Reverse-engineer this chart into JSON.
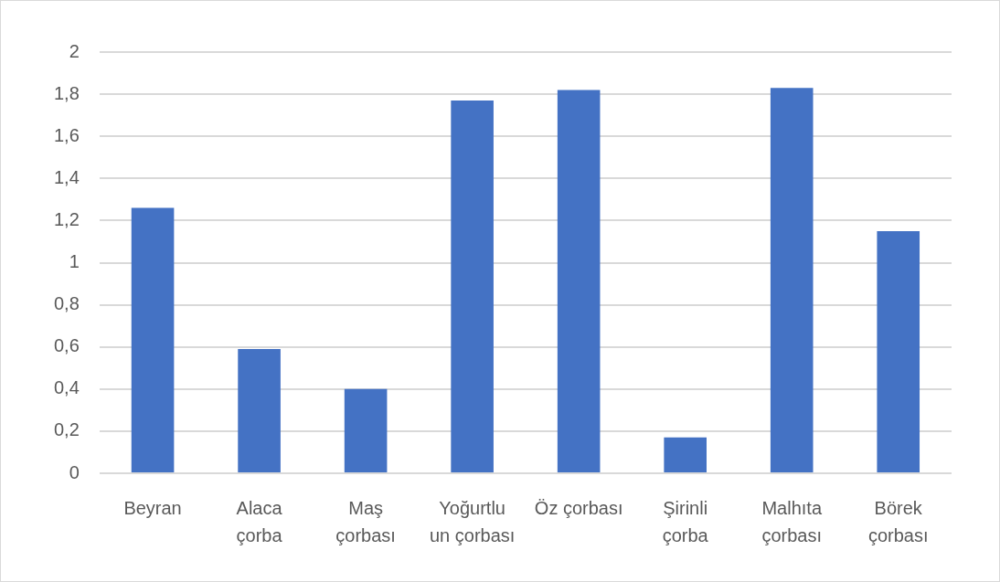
{
  "chart_data": {
    "type": "bar",
    "categories": [
      "Beyran",
      "Alaca çorba",
      "Maş çorbası",
      "Yoğurtlu un çorbası",
      "Öz çorbası",
      "Şirinli çorba",
      "Malhıta çorbası",
      "Börek çorbası"
    ],
    "values": [
      1.26,
      0.59,
      0.4,
      1.77,
      1.82,
      0.17,
      1.83,
      1.15
    ],
    "color": "#4472c4",
    "ylim": [
      0,
      2
    ],
    "yticks": [
      0,
      {
        "value": 0.2,
        "label": "0,2"
      },
      {
        "value": 0.4,
        "label": "0,4"
      },
      {
        "value": 0.6,
        "label": "0,6"
      },
      {
        "value": 0.8,
        "label": "0,8"
      },
      1,
      {
        "value": 1.2,
        "label": "1,2"
      },
      {
        "value": 1.4,
        "label": "1,4"
      },
      {
        "value": 1.6,
        "label": "1,6"
      },
      {
        "value": 1.8,
        "label": "1,8"
      },
      2
    ],
    "grid": "y"
  }
}
